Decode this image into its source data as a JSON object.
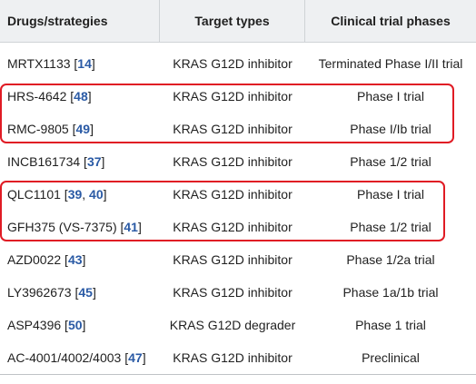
{
  "table": {
    "headers": {
      "drug": "Drugs/strategies",
      "target": "Target types",
      "phase": "Clinical trial phases"
    },
    "rows": [
      {
        "drug": "MRTX1133",
        "refs": [
          "14"
        ],
        "target": "KRAS G12D inhibitor",
        "phase": "Terminated Phase I/II trial"
      },
      {
        "drug": "HRS-4642",
        "refs": [
          "48"
        ],
        "target": "KRAS G12D inhibitor",
        "phase": "Phase I trial"
      },
      {
        "drug": "RMC-9805",
        "refs": [
          "49"
        ],
        "target": "KRAS G12D inhibitor",
        "phase": "Phase I/Ib trial"
      },
      {
        "drug": "INCB161734",
        "refs": [
          "37"
        ],
        "target": "KRAS G12D inhibitor",
        "phase": "Phase 1/2 trial"
      },
      {
        "drug": "QLC1101",
        "refs": [
          "39",
          "40"
        ],
        "target": "KRAS G12D inhibitor",
        "phase": "Phase I trial"
      },
      {
        "drug": "GFH375 (VS-7375)",
        "refs": [
          "41"
        ],
        "target": "KRAS G12D inhibitor",
        "phase": "Phase 1/2 trial"
      },
      {
        "drug": "AZD0022",
        "refs": [
          "43"
        ],
        "target": "KRAS G12D inhibitor",
        "phase": "Phase 1/2a trial"
      },
      {
        "drug": "LY3962673",
        "refs": [
          "45"
        ],
        "target": "KRAS G12D inhibitor",
        "phase": "Phase 1a/1b trial"
      },
      {
        "drug": "ASP4396",
        "refs": [
          "50"
        ],
        "target": "KRAS G12D degrader",
        "phase": "Phase 1 trial"
      },
      {
        "drug": "AC-4001/4002/4003",
        "refs": [
          "47"
        ],
        "target": "KRAS G12D inhibitor",
        "phase": "Preclinical"
      }
    ]
  },
  "colors": {
    "highlight": "#e01b24",
    "reference_link": "#2a5aa5",
    "header_bg": "#eef0f2"
  }
}
